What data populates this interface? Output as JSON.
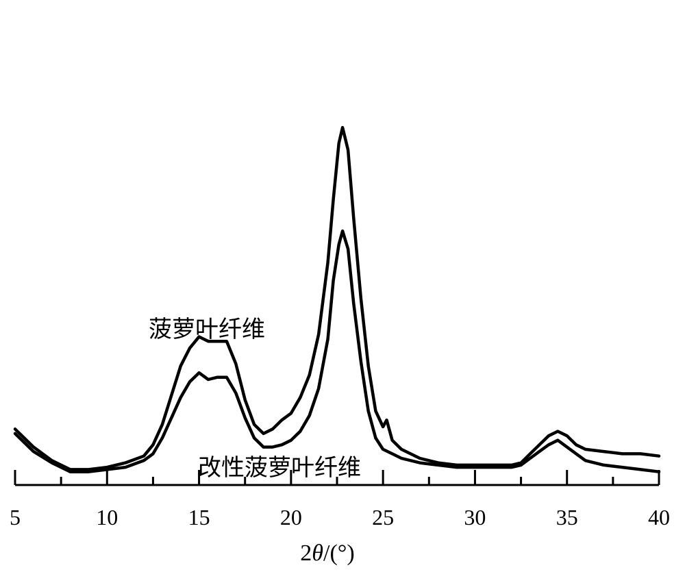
{
  "chart_data": {
    "type": "line",
    "title": "",
    "xlabel": "2θ/(°)",
    "xlabel_parts": {
      "prefix": "2",
      "italic": "θ",
      "suffix": "/(°)"
    },
    "ylabel": "",
    "xlim": [
      5,
      40
    ],
    "ylim": [
      0,
      100
    ],
    "x_ticks": [
      5,
      10,
      15,
      20,
      25,
      30,
      35,
      40
    ],
    "x_tick_labels": [
      "5",
      "10",
      "15",
      "20",
      "25",
      "30",
      "35",
      "40"
    ],
    "x_minor_ticks": [
      7.5,
      12.5,
      17.5,
      22.5,
      27.5,
      32.5,
      37.5
    ],
    "grid": false,
    "legend": "none",
    "series": [
      {
        "name": "菠萝叶纤维",
        "color": "#000000",
        "x": [
          5,
          6,
          7,
          8,
          9,
          10,
          11,
          12,
          12.5,
          13,
          13.5,
          14,
          14.5,
          15,
          15.5,
          16,
          16.5,
          17,
          17.5,
          18,
          18.5,
          19,
          19.5,
          20,
          20.5,
          21,
          21.5,
          22,
          22.3,
          22.6,
          22.8,
          23.1,
          23.4,
          23.8,
          24.2,
          24.6,
          25,
          25.2,
          25.5,
          26,
          27,
          28,
          29,
          30,
          31,
          32,
          32.5,
          33,
          33.5,
          34,
          34.5,
          35,
          35.5,
          36,
          37,
          38,
          39,
          40
        ],
        "y": [
          10,
          6,
          3,
          1,
          1,
          1.5,
          2.5,
          4,
          6.5,
          11,
          17.5,
          24,
          28,
          30.5,
          29.5,
          29.5,
          29.5,
          24.5,
          16.5,
          11,
          9,
          10,
          12,
          13.5,
          17,
          22,
          31,
          47,
          61,
          73.5,
          77,
          72,
          57,
          39,
          24,
          14,
          10.5,
          12,
          7.5,
          5.5,
          3.5,
          2.5,
          2,
          2,
          2,
          2,
          2.5,
          4.5,
          6.5,
          8.5,
          9.5,
          8.5,
          6.5,
          5.5,
          5,
          4.5,
          4.5,
          4
        ]
      },
      {
        "name": "改性菠萝叶纤维",
        "color": "#000000",
        "x": [
          5,
          6,
          7,
          8,
          9,
          10,
          11,
          12,
          12.5,
          13,
          13.5,
          14,
          14.5,
          15,
          15.5,
          16,
          16.5,
          17,
          17.5,
          18,
          18.5,
          19,
          19.5,
          20,
          20.5,
          21,
          21.5,
          22,
          22.3,
          22.6,
          22.8,
          23.1,
          23.4,
          23.8,
          24.2,
          24.6,
          25,
          25.5,
          26,
          27,
          28,
          29,
          30,
          31,
          32,
          32.5,
          33,
          33.5,
          34,
          34.5,
          35,
          35.5,
          36,
          37,
          38,
          39,
          40
        ],
        "y": [
          9,
          5,
          2.5,
          0.5,
          0.5,
          1,
          1.5,
          3,
          4.5,
          8,
          12.5,
          17,
          20.5,
          22.5,
          21,
          21.5,
          21.5,
          18,
          12.5,
          8,
          6,
          6,
          6.5,
          7.5,
          9.5,
          13,
          19,
          30,
          43,
          51,
          54,
          50,
          38,
          25,
          14,
          8,
          5.5,
          4.5,
          3.5,
          2.5,
          2,
          1.5,
          1.5,
          1.5,
          1.5,
          2,
          3.5,
          5,
          6.5,
          7.5,
          6,
          4.5,
          3,
          2,
          1.5,
          1,
          0.5
        ]
      }
    ]
  }
}
